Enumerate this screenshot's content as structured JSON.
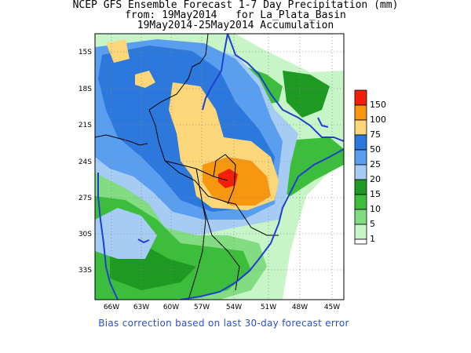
{
  "title": {
    "line1": "NCEP GFS Ensemble Forecast 1-7 Day Precipitation (mm)",
    "line2": "from: 19May2014   for La_Plata_Basin",
    "line3": "19May2014-25May2014 Accumulation"
  },
  "map": {
    "lat_ticks": [
      "15S",
      "18S",
      "21S",
      "24S",
      "27S",
      "30S",
      "33S"
    ],
    "lon_ticks": [
      "66W",
      "63W",
      "60W",
      "57W",
      "54W",
      "51W",
      "48W",
      "45W"
    ],
    "grid": "dotted"
  },
  "legend": {
    "levels": [
      {
        "label": "150",
        "color": "#f0200a"
      },
      {
        "label": "100",
        "color": "#f7960f"
      },
      {
        "label": "75",
        "color": "#fbd77a"
      },
      {
        "label": "50",
        "color": "#2c78dc"
      },
      {
        "label": "25",
        "color": "#5a9ef0"
      },
      {
        "label": "20",
        "color": "#a6ccf4"
      },
      {
        "label": "15",
        "color": "#1e9a22"
      },
      {
        "label": "10",
        "color": "#3cbe3c"
      },
      {
        "label": "5",
        "color": "#82dc82"
      },
      {
        "label": "1",
        "color": "#c8f5c8"
      }
    ]
  },
  "footnote": "Bias correction based on last 30-day forecast error"
}
